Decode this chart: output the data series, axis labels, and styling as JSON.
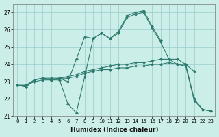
{
  "xlabel": "Humidex (Indice chaleur)",
  "background_color": "#cceee8",
  "grid_color": "#99cccc",
  "line_color": "#2d7a6e",
  "x": [
    0,
    1,
    2,
    3,
    4,
    5,
    6,
    7,
    8,
    9,
    10,
    11,
    12,
    13,
    14,
    15,
    16,
    17,
    18,
    19,
    20,
    21,
    22,
    23
  ],
  "line1": [
    22.8,
    22.7,
    23.1,
    23.2,
    23.1,
    23.2,
    23.0,
    24.3,
    25.6,
    25.5,
    25.8,
    25.5,
    25.9,
    26.8,
    27.0,
    27.1,
    26.2,
    25.4,
    null,
    null,
    null,
    null,
    null,
    null
  ],
  "line2": [
    22.8,
    22.7,
    23.1,
    23.2,
    23.1,
    23.1,
    21.7,
    21.2,
    23.3,
    25.5,
    25.8,
    25.5,
    25.8,
    26.7,
    26.9,
    27.0,
    26.1,
    25.3,
    24.3,
    24.0,
    23.9,
    21.9,
    21.4,
    21.3
  ],
  "line3": [
    22.8,
    22.8,
    23.1,
    23.2,
    23.2,
    23.2,
    23.3,
    23.4,
    23.6,
    23.7,
    23.8,
    23.9,
    24.0,
    24.0,
    24.1,
    24.1,
    24.2,
    24.3,
    24.3,
    24.3,
    24.0,
    23.6,
    null,
    null
  ],
  "line4": [
    22.8,
    22.8,
    23.0,
    23.1,
    23.1,
    23.2,
    23.2,
    23.3,
    23.5,
    23.6,
    23.7,
    23.7,
    23.8,
    23.8,
    23.9,
    23.9,
    24.0,
    24.0,
    24.1,
    24.0,
    24.0,
    22.0,
    21.4,
    21.3
  ],
  "ylim": [
    21.0,
    27.5
  ],
  "yticks": [
    21,
    22,
    23,
    24,
    25,
    26,
    27
  ],
  "xlim": [
    -0.5,
    23.5
  ],
  "xticks": [
    0,
    1,
    2,
    3,
    4,
    5,
    6,
    7,
    8,
    9,
    10,
    11,
    12,
    13,
    14,
    15,
    16,
    17,
    18,
    19,
    20,
    21,
    22,
    23
  ],
  "markersize": 2.5,
  "linewidth": 0.8
}
